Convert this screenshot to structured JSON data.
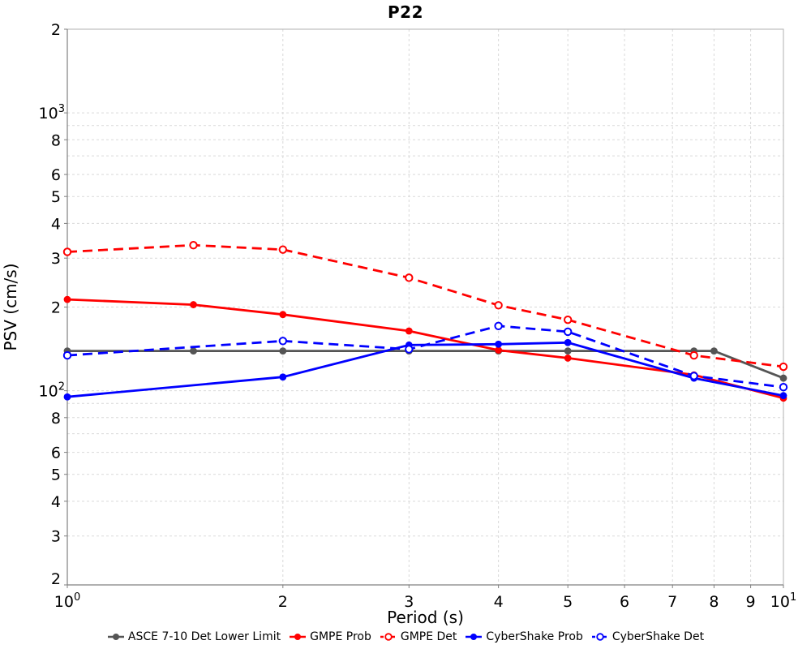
{
  "chart_data": {
    "type": "line",
    "title": "P22",
    "grid": true,
    "legend_position": "bottom",
    "colors": {
      "grid": "#d9d9d9",
      "frame": "#b0b0b0",
      "spine": "#808080",
      "text": "#000000",
      "asce": "#555555",
      "gmpe": "#ff0000",
      "cybershake": "#0000ff"
    },
    "x_axis": {
      "label": "Period (s)",
      "scale": "log",
      "range": [
        1,
        10
      ],
      "ticks": [
        {
          "v": 1,
          "base": "10",
          "sup": "0"
        },
        {
          "v": 2,
          "base": "2"
        },
        {
          "v": 3,
          "base": "3"
        },
        {
          "v": 4,
          "base": "4"
        },
        {
          "v": 5,
          "base": "5"
        },
        {
          "v": 6,
          "base": "6"
        },
        {
          "v": 7,
          "base": "7"
        },
        {
          "v": 8,
          "base": "8"
        },
        {
          "v": 9,
          "base": "9"
        },
        {
          "v": 10,
          "base": "10",
          "sup": "1"
        }
      ]
    },
    "y_axis": {
      "label": "PSV (cm/s)",
      "scale": "log",
      "range": [
        20,
        2000
      ],
      "ticks": [
        {
          "v": 2000,
          "base": "2"
        },
        {
          "v": 1000,
          "base": "10",
          "sup": "3"
        },
        {
          "v": 800,
          "base": "8"
        },
        {
          "v": 600,
          "base": "6"
        },
        {
          "v": 500,
          "base": "5"
        },
        {
          "v": 400,
          "base": "4"
        },
        {
          "v": 300,
          "base": "3"
        },
        {
          "v": 200,
          "base": "2"
        },
        {
          "v": 100,
          "base": "10",
          "sup": "2"
        },
        {
          "v": 80,
          "base": "8"
        },
        {
          "v": 60,
          "base": "6"
        },
        {
          "v": 50,
          "base": "5"
        },
        {
          "v": 40,
          "base": "4"
        },
        {
          "v": 30,
          "base": "3"
        },
        {
          "v": 20,
          "base": "2"
        }
      ]
    },
    "series": [
      {
        "name": "ASCE 7-10 Det Lower Limit",
        "color": "#555555",
        "line": "solid",
        "marker": "filled",
        "x": [
          1,
          1.5,
          2,
          3,
          4,
          5,
          7.5,
          8,
          10
        ],
        "y": [
          139,
          139,
          139,
          139,
          139,
          139,
          139,
          139,
          111
        ]
      },
      {
        "name": "GMPE Prob",
        "color": "#ff0000",
        "line": "solid",
        "marker": "filled",
        "x": [
          1,
          1.5,
          2,
          3,
          4,
          5,
          7.5,
          10
        ],
        "y": [
          213,
          204,
          188,
          164,
          140,
          131,
          114,
          94
        ]
      },
      {
        "name": "GMPE Det",
        "color": "#ff0000",
        "line": "dashed",
        "marker": "open",
        "x": [
          1,
          1.5,
          2,
          3,
          4,
          5,
          7.5,
          10
        ],
        "y": [
          316,
          334,
          322,
          255,
          203,
          180,
          134,
          122
        ]
      },
      {
        "name": "CyberShake Prob",
        "color": "#0000ff",
        "line": "solid",
        "marker": "filled",
        "x": [
          1,
          2,
          3,
          4,
          5,
          7.5,
          10
        ],
        "y": [
          95,
          112,
          146,
          147,
          149,
          111,
          96
        ]
      },
      {
        "name": "CyberShake Det",
        "color": "#0000ff",
        "line": "dashed",
        "marker": "open",
        "x": [
          1,
          2,
          3,
          4,
          5,
          7.5,
          10
        ],
        "y": [
          134,
          151,
          141,
          171,
          163,
          113,
          103
        ]
      }
    ]
  }
}
